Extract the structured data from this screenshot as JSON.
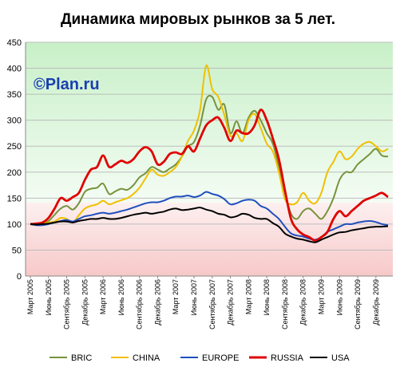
{
  "chart_data": {
    "type": "line",
    "title": "Динамика мировых рынков за 5 лет.",
    "watermark": "©Plan.ru",
    "ylim": [
      0,
      450
    ],
    "yticks": [
      0,
      50,
      100,
      150,
      200,
      250,
      300,
      350,
      400,
      450
    ],
    "grid": true,
    "legend_position": "bottom",
    "x_tick_labels": [
      "Март 2005",
      "Июнь 2005",
      "Сентябрь 2005",
      "Декабрь 2005",
      "Март 2006",
      "Июнь 2006",
      "Сентябрь 2006",
      "Декабрь 2006",
      "Март 2007",
      "Июнь 2007",
      "Сентябрь 2007",
      "Декабрь 2007",
      "Март 2008",
      "Июнь 2008",
      "Сентябрь 2008",
      "Декабрь 2008",
      "Март 2009",
      "Июнь 2009",
      "Сентябрь 2009",
      "Декабрь 2009"
    ],
    "x_months": [
      "2005-03",
      "2005-04",
      "2005-05",
      "2005-06",
      "2005-07",
      "2005-08",
      "2005-09",
      "2005-10",
      "2005-11",
      "2005-12",
      "2006-01",
      "2006-02",
      "2006-03",
      "2006-04",
      "2006-05",
      "2006-06",
      "2006-07",
      "2006-08",
      "2006-09",
      "2006-10",
      "2006-11",
      "2006-12",
      "2007-01",
      "2007-02",
      "2007-03",
      "2007-04",
      "2007-05",
      "2007-06",
      "2007-07",
      "2007-08",
      "2007-09",
      "2007-10",
      "2007-11",
      "2007-12",
      "2008-01",
      "2008-02",
      "2008-03",
      "2008-04",
      "2008-05",
      "2008-06",
      "2008-07",
      "2008-08",
      "2008-09",
      "2008-10",
      "2008-11",
      "2008-12",
      "2009-01",
      "2009-02",
      "2009-03",
      "2009-04",
      "2009-05",
      "2009-06",
      "2009-07",
      "2009-08",
      "2009-09",
      "2009-10",
      "2009-11",
      "2009-12",
      "2010-01",
      "2010-02"
    ],
    "series": [
      {
        "name": "BRIC",
        "color": "#76933c",
        "values": [
          100,
          100,
          102,
          106,
          118,
          130,
          135,
          128,
          140,
          162,
          168,
          170,
          178,
          158,
          163,
          168,
          166,
          175,
          190,
          198,
          210,
          205,
          200,
          207,
          215,
          230,
          250,
          258,
          290,
          340,
          345,
          320,
          330,
          275,
          298,
          275,
          305,
          318,
          300,
          275,
          255,
          210,
          160,
          120,
          110,
          125,
          130,
          120,
          110,
          125,
          150,
          185,
          200,
          200,
          215,
          225,
          235,
          245,
          232,
          230
        ]
      },
      {
        "name": "CHINA",
        "color": "#f0c000",
        "values": [
          100,
          100,
          101,
          103,
          105,
          112,
          110,
          103,
          117,
          130,
          135,
          138,
          145,
          138,
          142,
          146,
          150,
          158,
          170,
          188,
          205,
          195,
          193,
          200,
          210,
          230,
          260,
          280,
          320,
          405,
          360,
          345,
          310,
          270,
          275,
          260,
          300,
          312,
          285,
          255,
          240,
          200,
          148,
          138,
          142,
          160,
          145,
          140,
          160,
          200,
          220,
          240,
          225,
          230,
          245,
          255,
          258,
          250,
          240,
          245
        ]
      },
      {
        "name": "EUROPE",
        "color": "#1f4fbf",
        "values": [
          100,
          98,
          98,
          100,
          103,
          106,
          108,
          105,
          110,
          115,
          117,
          120,
          122,
          120,
          122,
          125,
          128,
          132,
          136,
          140,
          142,
          142,
          145,
          150,
          153,
          153,
          155,
          152,
          155,
          162,
          158,
          155,
          148,
          138,
          140,
          145,
          147,
          145,
          135,
          130,
          120,
          110,
          95,
          82,
          78,
          76,
          72,
          70,
          75,
          85,
          90,
          95,
          100,
          100,
          103,
          105,
          106,
          104,
          100,
          98
        ]
      },
      {
        "name": "RUSSIA",
        "color": "#e00000",
        "values": [
          100,
          101,
          103,
          112,
          130,
          150,
          145,
          152,
          160,
          185,
          205,
          210,
          232,
          210,
          215,
          222,
          218,
          225,
          240,
          248,
          240,
          215,
          220,
          235,
          238,
          235,
          250,
          240,
          265,
          290,
          300,
          305,
          285,
          260,
          280,
          275,
          275,
          290,
          320,
          300,
          265,
          225,
          165,
          110,
          90,
          80,
          75,
          68,
          75,
          85,
          110,
          125,
          115,
          125,
          135,
          145,
          150,
          155,
          160,
          152
        ]
      },
      {
        "name": "USA",
        "color": "#000000",
        "values": [
          100,
          99,
          100,
          101,
          103,
          105,
          105,
          103,
          106,
          108,
          110,
          110,
          112,
          110,
          110,
          112,
          115,
          118,
          120,
          122,
          120,
          122,
          124,
          128,
          130,
          127,
          128,
          130,
          132,
          128,
          125,
          120,
          118,
          113,
          115,
          120,
          118,
          112,
          110,
          110,
          102,
          95,
          82,
          76,
          72,
          70,
          67,
          65,
          70,
          75,
          80,
          84,
          85,
          88,
          90,
          92,
          94,
          95,
          95,
          96
        ]
      }
    ]
  }
}
